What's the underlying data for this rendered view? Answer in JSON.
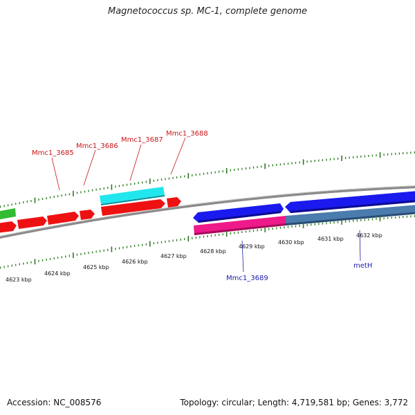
{
  "title": "Magnetococcus sp. MC-1, complete genome",
  "footer": {
    "accession": "Accession: NC_008576",
    "summary": "Topology: circular; Length: 4,719,581 bp; Genes: 3,772"
  },
  "colors": {
    "backbone": "#8a8a8a",
    "tick": "#2a7a1e",
    "gene_red": "#ee1111",
    "gene_cyan": "#22e6ee",
    "gene_green": "#33bb33",
    "gene_blue": "#1a1aee",
    "gene_pink": "#ee1a8a",
    "gene_steel": "#4a7cae",
    "label_red": "#c81414",
    "label_blue": "#1a1aa8"
  },
  "kbp_labels": [
    "4623 kbp",
    "4624 kbp",
    "4625 kbp",
    "4626 kbp",
    "4627 kbp",
    "4628 kbp",
    "4629 kbp",
    "4630 kbp",
    "4631 kbp",
    "4632 kbp"
  ],
  "gene_labels": [
    {
      "text": "Mmc1_3685",
      "color": "red"
    },
    {
      "text": "Mmc1_3686",
      "color": "red"
    },
    {
      "text": "Mmc1_3687",
      "color": "red"
    },
    {
      "text": "Mmc1_3688",
      "color": "red"
    },
    {
      "text": "Mmc1_3689",
      "color": "blue"
    },
    {
      "text": "metH",
      "color": "blue"
    }
  ]
}
